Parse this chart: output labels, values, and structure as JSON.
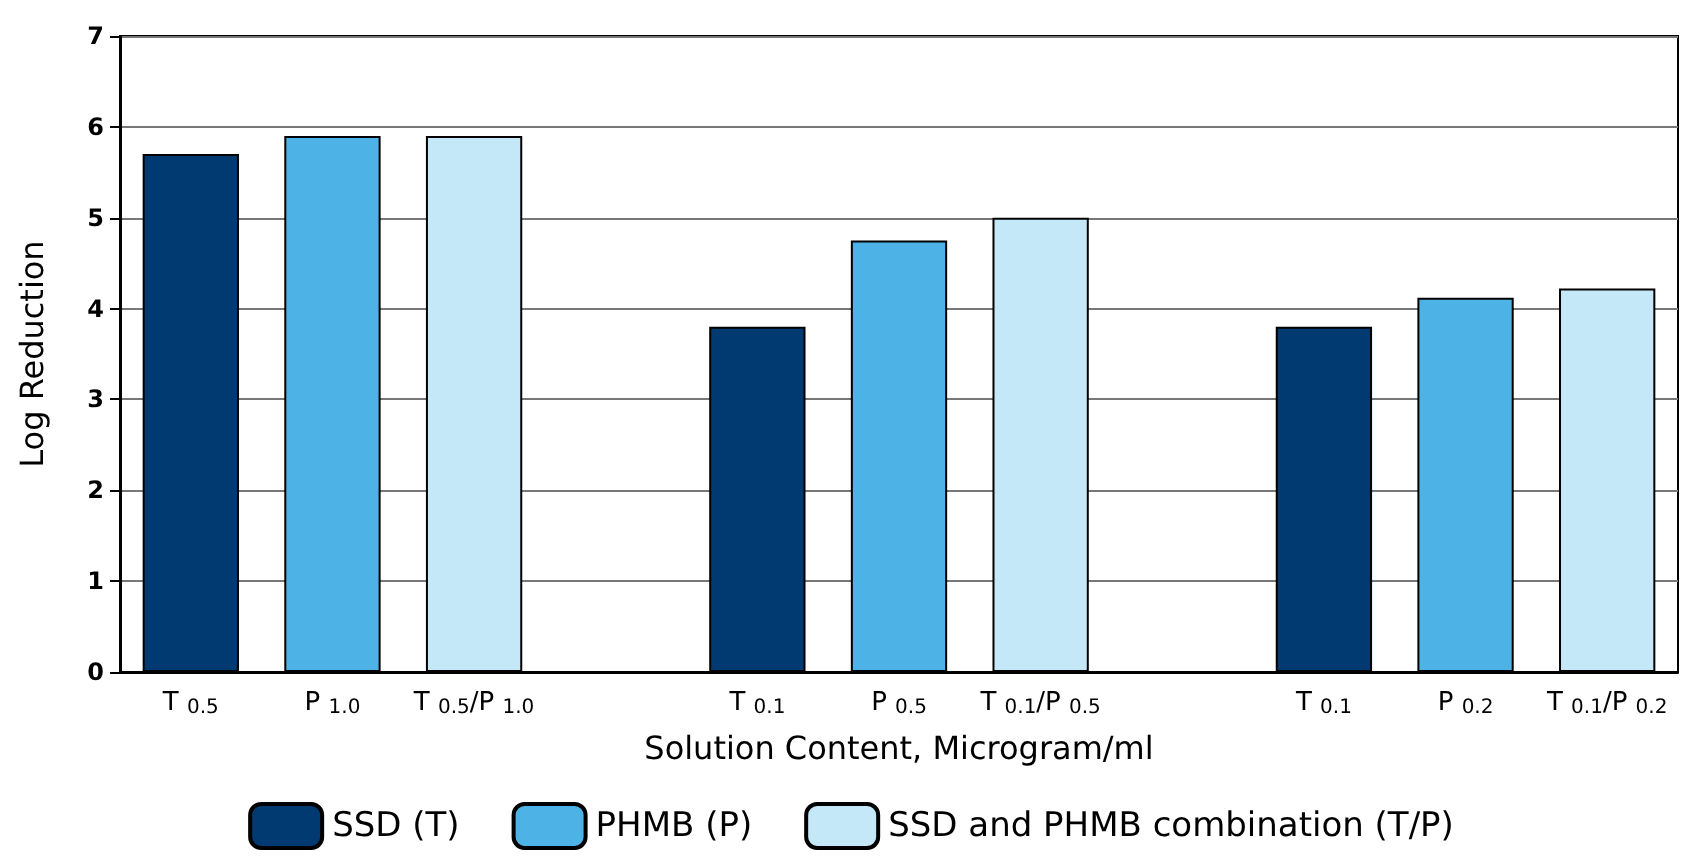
{
  "chart_data": {
    "type": "bar",
    "xlabel": "Solution Content, Microgram/ml",
    "ylabel": "Log Reduction",
    "categories": [
      "T $_{0.5}$",
      "P $_{1.0}$",
      "T $_{0.5}$/P $_{1.0}$",
      null,
      "T $_{0.1}$",
      "P $_{0.5}$",
      "T $_{0.1}$/P $_{0.5}$",
      null,
      "T $_{0.1}$",
      "P $_{0.2}$",
      "T $_{0.1}$/P $_{0.2}$"
    ],
    "series": [
      {
        "name": "SSD (T)",
        "color": "#003a70",
        "values": [
          5.7,
          null,
          null,
          null,
          3.8,
          null,
          null,
          null,
          3.8,
          null,
          null
        ]
      },
      {
        "name": "PHMB (P)",
        "color": "#4db3e6",
        "values": [
          null,
          5.9,
          null,
          null,
          null,
          4.75,
          null,
          null,
          null,
          4.12,
          null
        ]
      },
      {
        "name": "SSD and PHMB combination (T/P)",
        "color": "#c5e8f8",
        "values": [
          null,
          null,
          5.9,
          null,
          null,
          null,
          5.0,
          null,
          null,
          null,
          4.22
        ]
      }
    ],
    "ylim": [
      0,
      7
    ],
    "yticks": [
      0,
      1,
      2,
      3,
      4,
      5,
      6,
      7
    ],
    "grid": "y",
    "legend": "bottom"
  }
}
